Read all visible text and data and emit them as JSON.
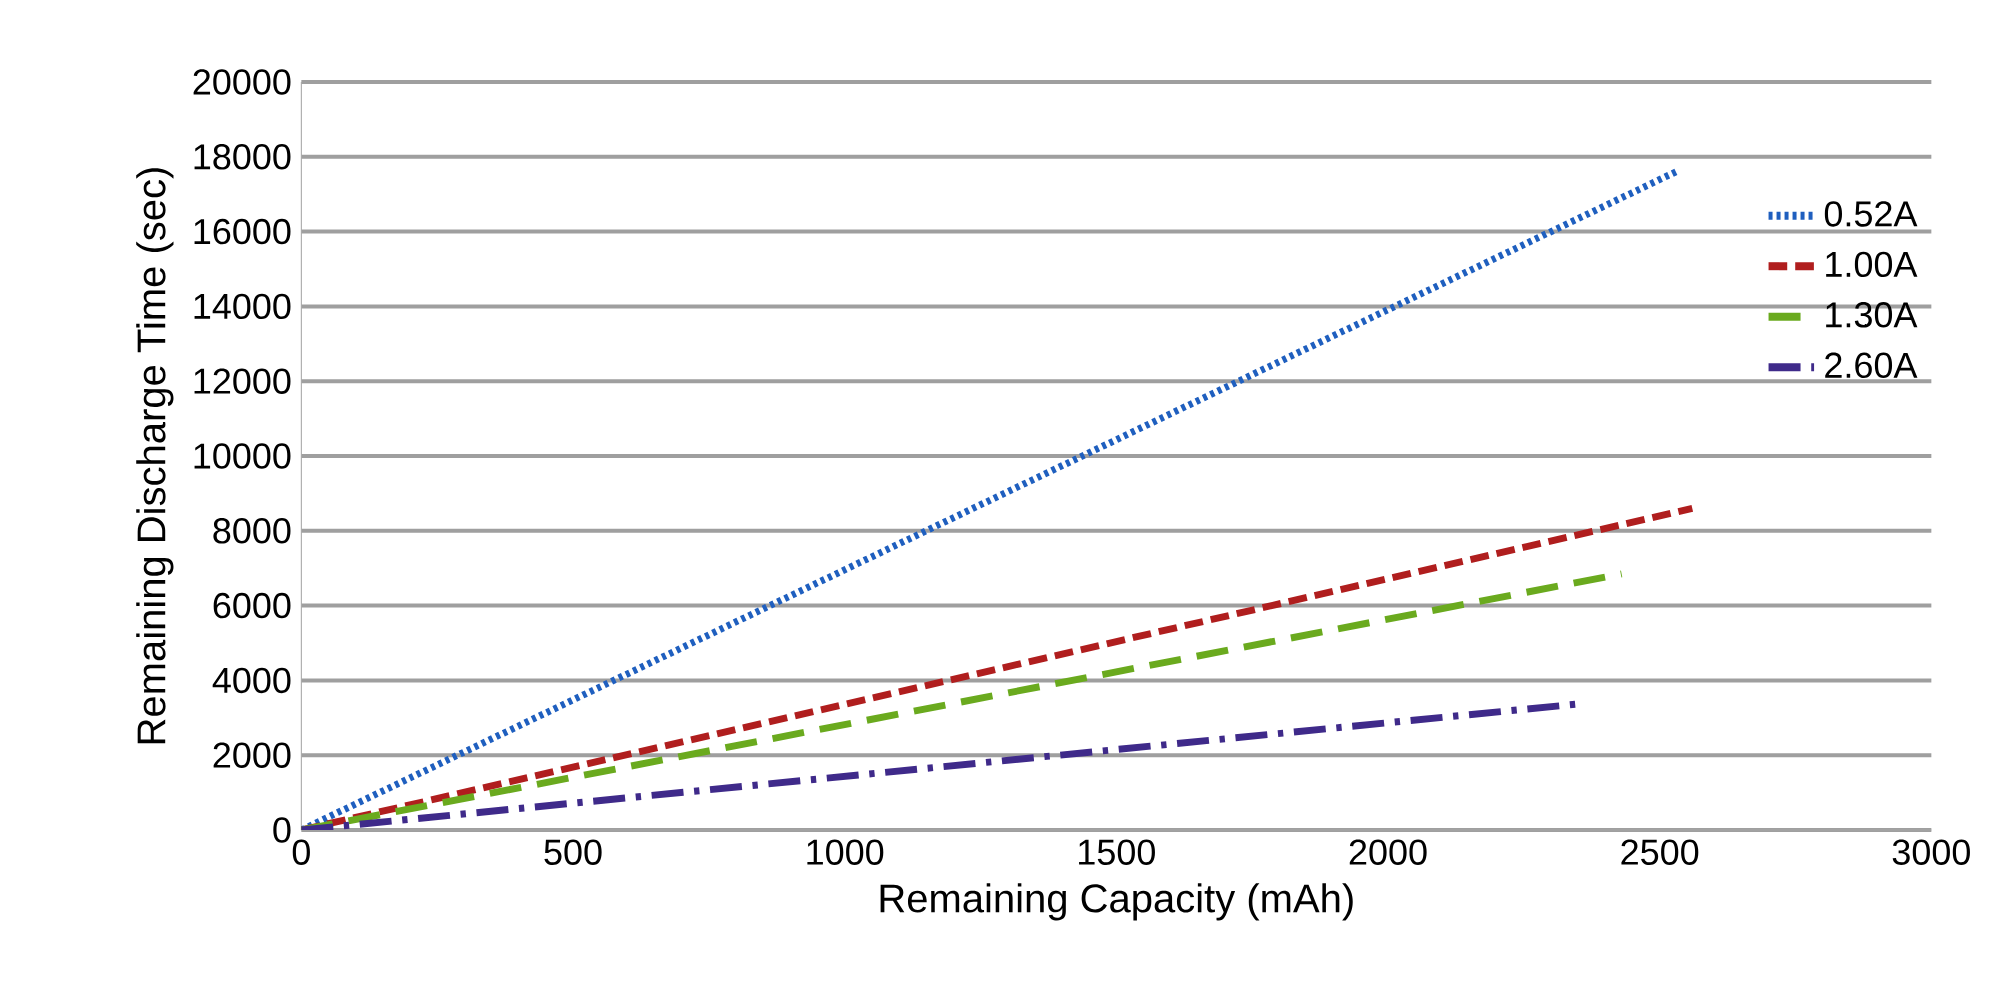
{
  "chart_data": {
    "type": "line",
    "xlabel": "Remaining Capacity (mAh)",
    "ylabel": "Remaining Discharge Time (sec)",
    "xlim": [
      0,
      3000
    ],
    "ylim": [
      0,
      20000
    ],
    "xticks": [
      0,
      500,
      1000,
      1500,
      2000,
      2500,
      3000
    ],
    "yticks": [
      0,
      2000,
      4000,
      6000,
      8000,
      10000,
      12000,
      14000,
      16000,
      18000,
      20000
    ],
    "grid": "y",
    "legend": "right",
    "marker": "none",
    "series": [
      {
        "name": "0.52A",
        "color": "#1f5fbf",
        "line_style": "dotted",
        "x": [
          0,
          2530
        ],
        "values": [
          0,
          17600
        ]
      },
      {
        "name": "1.00A",
        "color": "#b01e1e",
        "line_style": "dashed",
        "x": [
          0,
          2560
        ],
        "values": [
          0,
          8600
        ]
      },
      {
        "name": "1.30A",
        "color": "#6aaa1e",
        "line_style": "longdashed",
        "x": [
          0,
          2430
        ],
        "values": [
          0,
          6850
        ]
      },
      {
        "name": "2.60A",
        "color": "#3f2a8a",
        "line_style": "dashdot",
        "x": [
          0,
          2350
        ],
        "values": [
          0,
          3370
        ]
      }
    ]
  }
}
